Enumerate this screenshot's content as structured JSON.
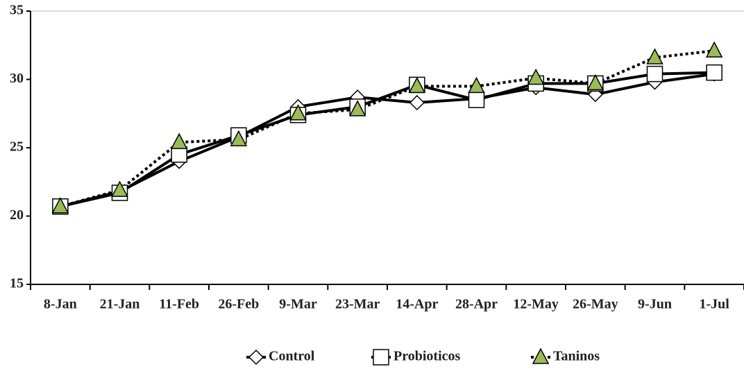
{
  "chart_data": {
    "type": "line",
    "categories": [
      "8-Jan",
      "21-Jan",
      "11-Feb",
      "26-Feb",
      "9-Mar",
      "23-Mar",
      "14-Apr",
      "28-Apr",
      "12-May",
      "26-May",
      "9-Jun",
      "1-Jul"
    ],
    "series": [
      {
        "name": "Control",
        "color": "#000000",
        "marker": "diamond",
        "dash": "solid",
        "values": [
          20.7,
          21.8,
          24.0,
          25.8,
          28.0,
          28.7,
          28.3,
          28.6,
          29.4,
          28.9,
          29.8,
          30.4
        ]
      },
      {
        "name": "Probioticos",
        "color": "#000000",
        "marker": "square",
        "dash": "solid",
        "values": [
          20.7,
          21.7,
          24.5,
          25.9,
          27.4,
          28.0,
          29.6,
          28.5,
          29.7,
          29.7,
          30.4,
          30.5
        ]
      },
      {
        "name": "Taninos",
        "color": "#000000",
        "marker": "triangle",
        "marker_color": "#9bbb59",
        "dash": "dotted",
        "values": [
          20.7,
          21.9,
          25.4,
          25.6,
          27.5,
          27.8,
          29.5,
          29.5,
          30.1,
          29.7,
          31.6,
          32.1
        ]
      }
    ],
    "ylim": [
      15,
      35
    ],
    "yticks": [
      15,
      20,
      25,
      30,
      35
    ],
    "grid": false,
    "legend": "bottom"
  }
}
